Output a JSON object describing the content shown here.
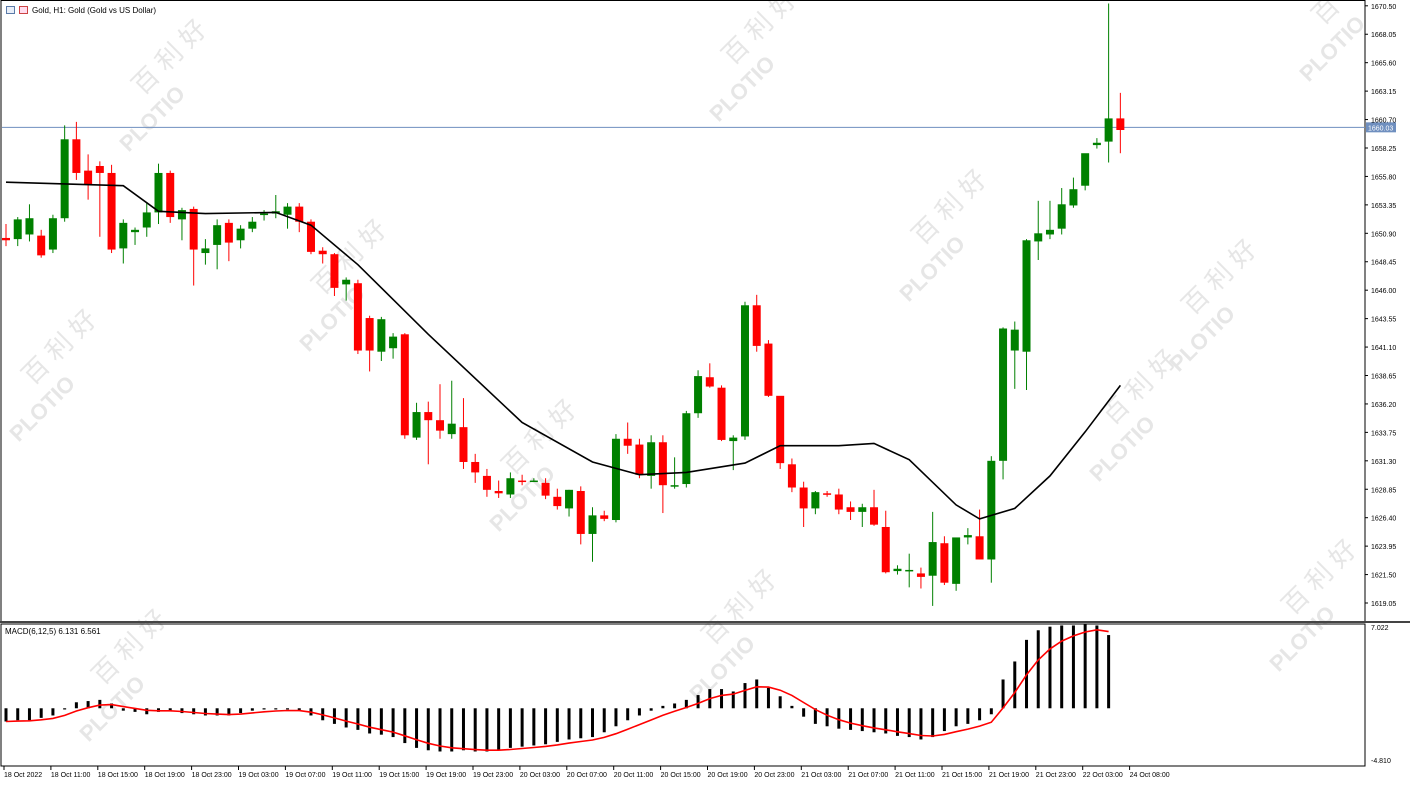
{
  "window": {
    "title": "Gold, H1:  Gold (Gold vs US Dollar)"
  },
  "price_tag": "1660.03",
  "macd": {
    "label": "MACD(6,12,5) 6.131 6.561",
    "axis_top": "7.022",
    "axis_bottom": "-4.810"
  },
  "watermark": {
    "brand": "PLOTIO",
    "cn": "百 利 好"
  },
  "colors": {
    "bull": "#008000",
    "bear": "#ff0000",
    "ma_line": "#000000",
    "signal_line": "#ff0000",
    "histogram": "#000000",
    "price_line": "#6f8fbf",
    "watermark": "#e6e6e6"
  },
  "chart_data": [
    {
      "type": "candlestick",
      "symbol": "Gold",
      "timeframe": "H1",
      "y_ticks": [
        "1670.50",
        "1668.05",
        "1665.60",
        "1663.15",
        "1660.70",
        "1658.25",
        "1655.80",
        "1653.35",
        "1650.90",
        "1648.45",
        "1646.00",
        "1643.55",
        "1641.10",
        "1638.65",
        "1636.20",
        "1633.75",
        "1631.30",
        "1628.85",
        "1626.40",
        "1623.95",
        "1621.50",
        "1619.05"
      ],
      "x_ticks": [
        "18 Oct 2022",
        "18 Oct 11:00",
        "18 Oct 15:00",
        "18 Oct 19:00",
        "18 Oct 23:00",
        "19 Oct 03:00",
        "19 Oct 07:00",
        "19 Oct 11:00",
        "19 Oct 15:00",
        "19 Oct 19:00",
        "19 Oct 23:00",
        "20 Oct 03:00",
        "20 Oct 07:00",
        "20 Oct 11:00",
        "20 Oct 15:00",
        "20 Oct 19:00",
        "20 Oct 23:00",
        "21 Oct 03:00",
        "21 Oct 07:00",
        "21 Oct 11:00",
        "21 Oct 15:00",
        "21 Oct 19:00",
        "21 Oct 23:00",
        "22 Oct 03:00",
        "24 Oct 08:00"
      ],
      "ylim": [
        1617.5,
        1671.0
      ],
      "current_price": 1660.03,
      "candles": [
        {
          "o": 1650.5,
          "h": 1651.7,
          "l": 1649.8,
          "c": 1650.3
        },
        {
          "o": 1650.4,
          "h": 1652.3,
          "l": 1649.8,
          "c": 1652.1
        },
        {
          "o": 1650.8,
          "h": 1653.4,
          "l": 1650.2,
          "c": 1652.2
        },
        {
          "o": 1650.7,
          "h": 1651.2,
          "l": 1648.8,
          "c": 1649.0
        },
        {
          "o": 1649.5,
          "h": 1652.5,
          "l": 1649.2,
          "c": 1652.2
        },
        {
          "o": 1652.2,
          "h": 1660.2,
          "l": 1651.9,
          "c": 1659.0
        },
        {
          "o": 1659.0,
          "h": 1660.5,
          "l": 1655.5,
          "c": 1656.1
        },
        {
          "o": 1656.3,
          "h": 1657.7,
          "l": 1653.8,
          "c": 1655.1
        },
        {
          "o": 1656.7,
          "h": 1657.1,
          "l": 1650.6,
          "c": 1656.1
        },
        {
          "o": 1656.1,
          "h": 1656.8,
          "l": 1649.2,
          "c": 1649.5
        },
        {
          "o": 1649.6,
          "h": 1652.1,
          "l": 1648.3,
          "c": 1651.8
        },
        {
          "o": 1651.0,
          "h": 1651.4,
          "l": 1649.9,
          "c": 1651.2
        },
        {
          "o": 1651.4,
          "h": 1653.6,
          "l": 1650.6,
          "c": 1652.7
        },
        {
          "o": 1652.7,
          "h": 1656.9,
          "l": 1651.7,
          "c": 1656.1
        },
        {
          "o": 1656.1,
          "h": 1656.3,
          "l": 1651.8,
          "c": 1652.3
        },
        {
          "o": 1652.1,
          "h": 1653.1,
          "l": 1650.3,
          "c": 1652.9
        },
        {
          "o": 1653.0,
          "h": 1653.2,
          "l": 1646.4,
          "c": 1649.5
        },
        {
          "o": 1649.2,
          "h": 1650.4,
          "l": 1648.2,
          "c": 1649.6
        },
        {
          "o": 1649.9,
          "h": 1652.1,
          "l": 1647.8,
          "c": 1651.6
        },
        {
          "o": 1651.8,
          "h": 1652.1,
          "l": 1648.5,
          "c": 1650.1
        },
        {
          "o": 1650.3,
          "h": 1651.6,
          "l": 1649.6,
          "c": 1651.3
        },
        {
          "o": 1651.3,
          "h": 1652.3,
          "l": 1651.0,
          "c": 1651.9
        },
        {
          "o": 1652.5,
          "h": 1652.9,
          "l": 1652.0,
          "c": 1652.6
        },
        {
          "o": 1652.6,
          "h": 1654.2,
          "l": 1652.2,
          "c": 1652.8
        },
        {
          "o": 1652.5,
          "h": 1653.5,
          "l": 1651.3,
          "c": 1653.2
        },
        {
          "o": 1653.2,
          "h": 1653.5,
          "l": 1651.0,
          "c": 1651.9
        },
        {
          "o": 1651.9,
          "h": 1652.1,
          "l": 1649.1,
          "c": 1649.3
        },
        {
          "o": 1649.4,
          "h": 1649.7,
          "l": 1648.3,
          "c": 1649.1
        },
        {
          "o": 1649.1,
          "h": 1649.2,
          "l": 1645.5,
          "c": 1646.2
        },
        {
          "o": 1646.5,
          "h": 1647.1,
          "l": 1645.1,
          "c": 1646.9
        },
        {
          "o": 1646.6,
          "h": 1646.9,
          "l": 1640.5,
          "c": 1640.8
        },
        {
          "o": 1643.6,
          "h": 1643.8,
          "l": 1639.0,
          "c": 1640.8
        },
        {
          "o": 1640.7,
          "h": 1643.7,
          "l": 1639.9,
          "c": 1643.5
        },
        {
          "o": 1641.0,
          "h": 1642.3,
          "l": 1640.1,
          "c": 1642.0
        },
        {
          "o": 1642.2,
          "h": 1642.3,
          "l": 1633.2,
          "c": 1633.5
        },
        {
          "o": 1633.3,
          "h": 1636.3,
          "l": 1633.1,
          "c": 1635.5
        },
        {
          "o": 1635.5,
          "h": 1636.4,
          "l": 1631.0,
          "c": 1634.8
        },
        {
          "o": 1634.8,
          "h": 1637.9,
          "l": 1633.2,
          "c": 1633.9
        },
        {
          "o": 1633.6,
          "h": 1638.2,
          "l": 1633.2,
          "c": 1634.5
        },
        {
          "o": 1634.2,
          "h": 1636.7,
          "l": 1630.6,
          "c": 1631.2
        },
        {
          "o": 1631.2,
          "h": 1631.9,
          "l": 1629.4,
          "c": 1630.3
        },
        {
          "o": 1630.0,
          "h": 1630.6,
          "l": 1628.2,
          "c": 1628.8
        },
        {
          "o": 1628.7,
          "h": 1629.6,
          "l": 1628.1,
          "c": 1628.5
        },
        {
          "o": 1628.4,
          "h": 1630.3,
          "l": 1628.1,
          "c": 1629.8
        },
        {
          "o": 1629.6,
          "h": 1630.1,
          "l": 1629.2,
          "c": 1629.5
        },
        {
          "o": 1629.6,
          "h": 1629.8,
          "l": 1629.5,
          "c": 1629.6
        },
        {
          "o": 1629.4,
          "h": 1629.8,
          "l": 1628.0,
          "c": 1628.3
        },
        {
          "o": 1628.2,
          "h": 1628.9,
          "l": 1627.1,
          "c": 1627.4
        },
        {
          "o": 1627.2,
          "h": 1628.8,
          "l": 1626.5,
          "c": 1628.8
        },
        {
          "o": 1628.7,
          "h": 1629.1,
          "l": 1624.1,
          "c": 1625.0
        },
        {
          "o": 1625.0,
          "h": 1627.3,
          "l": 1622.6,
          "c": 1626.6
        },
        {
          "o": 1626.6,
          "h": 1627.0,
          "l": 1626.1,
          "c": 1626.3
        },
        {
          "o": 1626.2,
          "h": 1633.6,
          "l": 1626.0,
          "c": 1633.2
        },
        {
          "o": 1633.2,
          "h": 1634.6,
          "l": 1631.9,
          "c": 1632.6
        },
        {
          "o": 1632.7,
          "h": 1633.2,
          "l": 1629.8,
          "c": 1630.1
        },
        {
          "o": 1630.0,
          "h": 1633.5,
          "l": 1628.9,
          "c": 1632.9
        },
        {
          "o": 1632.9,
          "h": 1633.5,
          "l": 1626.8,
          "c": 1629.2
        },
        {
          "o": 1629.2,
          "h": 1631.6,
          "l": 1628.9,
          "c": 1629.2
        },
        {
          "o": 1629.3,
          "h": 1635.6,
          "l": 1629.0,
          "c": 1635.4
        },
        {
          "o": 1635.4,
          "h": 1639.1,
          "l": 1635.0,
          "c": 1638.6
        },
        {
          "o": 1638.5,
          "h": 1639.7,
          "l": 1637.6,
          "c": 1637.7
        },
        {
          "o": 1637.6,
          "h": 1637.8,
          "l": 1633.0,
          "c": 1633.1
        },
        {
          "o": 1633.0,
          "h": 1633.5,
          "l": 1630.5,
          "c": 1633.3
        },
        {
          "o": 1633.4,
          "h": 1645.0,
          "l": 1633.1,
          "c": 1644.7
        },
        {
          "o": 1644.7,
          "h": 1645.6,
          "l": 1640.7,
          "c": 1641.2
        },
        {
          "o": 1641.4,
          "h": 1641.7,
          "l": 1636.8,
          "c": 1636.9
        },
        {
          "o": 1636.9,
          "h": 1636.8,
          "l": 1630.6,
          "c": 1631.1
        },
        {
          "o": 1631.0,
          "h": 1631.5,
          "l": 1628.6,
          "c": 1629.0
        },
        {
          "o": 1629.0,
          "h": 1629.5,
          "l": 1625.6,
          "c": 1627.2
        },
        {
          "o": 1627.2,
          "h": 1628.7,
          "l": 1626.7,
          "c": 1628.6
        },
        {
          "o": 1628.5,
          "h": 1628.7,
          "l": 1628.2,
          "c": 1628.4
        },
        {
          "o": 1628.4,
          "h": 1628.9,
          "l": 1626.7,
          "c": 1627.1
        },
        {
          "o": 1627.3,
          "h": 1627.8,
          "l": 1626.2,
          "c": 1626.9
        },
        {
          "o": 1626.9,
          "h": 1627.6,
          "l": 1625.6,
          "c": 1627.3
        },
        {
          "o": 1627.3,
          "h": 1628.8,
          "l": 1625.7,
          "c": 1625.8
        },
        {
          "o": 1625.6,
          "h": 1627.0,
          "l": 1621.6,
          "c": 1621.7
        },
        {
          "o": 1621.8,
          "h": 1622.3,
          "l": 1621.5,
          "c": 1622.0
        },
        {
          "o": 1621.8,
          "h": 1623.3,
          "l": 1620.4,
          "c": 1621.9
        },
        {
          "o": 1621.6,
          "h": 1622.1,
          "l": 1620.3,
          "c": 1621.3
        },
        {
          "o": 1621.4,
          "h": 1626.9,
          "l": 1618.8,
          "c": 1624.3
        },
        {
          "o": 1624.2,
          "h": 1624.8,
          "l": 1620.6,
          "c": 1620.8
        },
        {
          "o": 1620.7,
          "h": 1624.6,
          "l": 1620.1,
          "c": 1624.7
        },
        {
          "o": 1624.7,
          "h": 1625.5,
          "l": 1624.1,
          "c": 1624.9
        },
        {
          "o": 1624.8,
          "h": 1627.1,
          "l": 1622.8,
          "c": 1622.8
        },
        {
          "o": 1622.8,
          "h": 1631.7,
          "l": 1620.8,
          "c": 1631.3
        },
        {
          "o": 1631.3,
          "h": 1642.8,
          "l": 1629.7,
          "c": 1642.7
        },
        {
          "o": 1640.8,
          "h": 1643.3,
          "l": 1637.5,
          "c": 1642.6
        },
        {
          "o": 1640.7,
          "h": 1650.4,
          "l": 1637.4,
          "c": 1650.3
        },
        {
          "o": 1650.2,
          "h": 1653.7,
          "l": 1648.6,
          "c": 1650.9
        },
        {
          "o": 1650.8,
          "h": 1653.7,
          "l": 1650.4,
          "c": 1651.2
        },
        {
          "o": 1651.3,
          "h": 1654.8,
          "l": 1650.8,
          "c": 1653.4
        },
        {
          "o": 1653.3,
          "h": 1655.7,
          "l": 1653.1,
          "c": 1654.7
        },
        {
          "o": 1655.0,
          "h": 1657.5,
          "l": 1654.6,
          "c": 1657.8
        },
        {
          "o": 1658.5,
          "h": 1659.1,
          "l": 1658.2,
          "c": 1658.7
        },
        {
          "o": 1658.8,
          "h": 1670.7,
          "l": 1657.0,
          "c": 1660.8
        },
        {
          "o": 1660.8,
          "h": 1663.0,
          "l": 1657.8,
          "c": 1659.8
        }
      ],
      "ma_line": [
        [
          0,
          1655.3
        ],
        [
          10,
          1655.0
        ],
        [
          13,
          1652.8
        ],
        [
          17,
          1652.6
        ],
        [
          23,
          1652.7
        ],
        [
          26,
          1651.6
        ],
        [
          30,
          1648.2
        ],
        [
          36,
          1642.2
        ],
        [
          44,
          1634.6
        ],
        [
          50,
          1631.2
        ],
        [
          54,
          1630.1
        ],
        [
          58,
          1630.3
        ],
        [
          63,
          1631.1
        ],
        [
          66,
          1632.6
        ],
        [
          71,
          1632.6
        ],
        [
          74,
          1632.8
        ],
        [
          77,
          1631.4
        ],
        [
          81,
          1627.5
        ],
        [
          83,
          1626.3
        ],
        [
          86,
          1627.2
        ],
        [
          89,
          1630.0
        ],
        [
          92,
          1633.8
        ],
        [
          95,
          1637.8
        ]
      ]
    },
    {
      "type": "macd",
      "name": "MACD(6,12,5)",
      "main": 6.131,
      "signal": 6.561,
      "ylim": [
        -4.81,
        7.022
      ],
      "histogram": [
        -1.1,
        -1.0,
        -1.0,
        -0.8,
        -0.6,
        -0.1,
        0.5,
        0.6,
        0.7,
        0.4,
        -0.2,
        -0.3,
        -0.5,
        -0.3,
        -0.2,
        -0.4,
        -0.5,
        -0.6,
        -0.6,
        -0.6,
        -0.4,
        -0.2,
        -0.1,
        -0.1,
        -0.1,
        -0.2,
        -0.6,
        -1.0,
        -1.3,
        -1.6,
        -1.8,
        -2.1,
        -2.2,
        -2.4,
        -2.9,
        -3.3,
        -3.5,
        -3.6,
        -3.6,
        -3.5,
        -3.6,
        -3.6,
        -3.5,
        -3.3,
        -3.2,
        -3.1,
        -3.0,
        -2.8,
        -2.6,
        -2.5,
        -2.4,
        -2.0,
        -1.5,
        -1.0,
        -0.6,
        -0.2,
        0.2,
        0.4,
        0.7,
        1.1,
        1.6,
        1.6,
        1.4,
        2.1,
        2.4,
        1.7,
        1.0,
        0.2,
        -0.7,
        -1.3,
        -1.5,
        -1.7,
        -1.8,
        -1.9,
        -2.0,
        -2.1,
        -2.3,
        -2.4,
        -2.6,
        -2.4,
        -1.9,
        -1.5,
        -1.3,
        -1.0,
        -0.5,
        2.4,
        3.9,
        5.7,
        6.5,
        6.8,
        6.9,
        6.9,
        7.0,
        6.9,
        6.1
      ]
    }
  ]
}
